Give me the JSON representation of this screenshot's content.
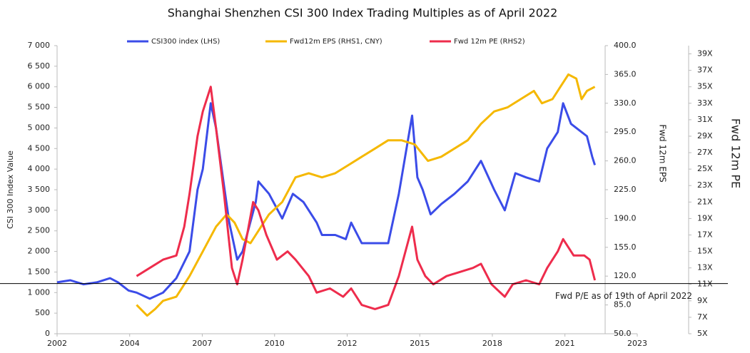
{
  "chart_data": {
    "type": "line",
    "title": "Shanghai Shenzhen CSI 300 Index Trading Multiples as of April 2022",
    "y_label": "CSI 300 Index Value",
    "y2_label": "Fwd 12m EPS",
    "y3_label": "Fwd 12m PE",
    "xlim": [
      2002,
      2023.9
    ],
    "xticks": [
      {
        "value": 2002.0,
        "label": "2002"
      },
      {
        "value": 2004.74,
        "label": "2004"
      },
      {
        "value": 2007.48,
        "label": "2007"
      },
      {
        "value": 2010.21,
        "label": "2010"
      },
      {
        "value": 2012.95,
        "label": "2012"
      },
      {
        "value": 2015.69,
        "label": "2015"
      },
      {
        "value": 2018.43,
        "label": "2018"
      },
      {
        "value": 2021.17,
        "label": "2021"
      },
      {
        "value": 2023.9,
        "label": "2023"
      }
    ],
    "ylim": [
      0,
      7000
    ],
    "yticks": [
      0,
      500,
      {
        "value": 1000,
        "label": "1 000"
      },
      {
        "value": 1500,
        "label": "1 500"
      },
      {
        "value": 2000,
        "label": "2 000"
      },
      {
        "value": 2500,
        "label": "2 500"
      },
      {
        "value": 3000,
        "label": "3 000"
      },
      {
        "value": 3500,
        "label": "3 500"
      },
      {
        "value": 4000,
        "label": "4 000"
      },
      {
        "value": 4500,
        "label": "4 500"
      },
      {
        "value": 5000,
        "label": "5 000"
      },
      {
        "value": 5500,
        "label": "5 500"
      },
      {
        "value": 6000,
        "label": "6 000"
      },
      {
        "value": 6500,
        "label": "6 500"
      },
      {
        "value": 7000,
        "label": "7 000"
      }
    ],
    "y2lim": [
      50,
      400
    ],
    "y2ticks": [
      {
        "value": 50,
        "label": "50.0"
      },
      {
        "value": 85,
        "label": "85.0"
      },
      {
        "value": 120,
        "label": "120.0"
      },
      {
        "value": 155,
        "label": "155.0"
      },
      {
        "value": 190,
        "label": "190.0"
      },
      {
        "value": 225,
        "label": "225.0"
      },
      {
        "value": 260,
        "label": "260.0"
      },
      {
        "value": 295,
        "label": "295.0"
      },
      {
        "value": 330,
        "label": "330.0"
      },
      {
        "value": 365,
        "label": "365.0"
      },
      {
        "value": 400,
        "label": "400.0"
      }
    ],
    "y3lim": [
      5,
      40
    ],
    "y3ticks": [
      {
        "value": 5,
        "label": "5X"
      },
      {
        "value": 7,
        "label": "7X"
      },
      {
        "value": 9,
        "label": "9X"
      },
      {
        "value": 11,
        "label": "11X"
      },
      {
        "value": 13,
        "label": "13X"
      },
      {
        "value": 15,
        "label": "15X"
      },
      {
        "value": 17,
        "label": "17X"
      },
      {
        "value": 19,
        "label": "19X"
      },
      {
        "value": 21,
        "label": "21X"
      },
      {
        "value": 23,
        "label": "23X"
      },
      {
        "value": 25,
        "label": "25X"
      },
      {
        "value": 27,
        "label": "27X"
      },
      {
        "value": 29,
        "label": "29X"
      },
      {
        "value": 31,
        "label": "31X"
      },
      {
        "value": 33,
        "label": "33X"
      },
      {
        "value": 35,
        "label": "35X"
      },
      {
        "value": 37,
        "label": "37X"
      },
      {
        "value": 39,
        "label": "39X"
      }
    ],
    "series": [
      {
        "name": "CSI300 index (LHS)",
        "color": "#3b4ce8",
        "axis": "y",
        "x": [
          2002.0,
          2002.5,
          2003.0,
          2003.5,
          2004.0,
          2004.3,
          2004.7,
          2005.0,
          2005.5,
          2006.0,
          2006.5,
          2007.0,
          2007.3,
          2007.5,
          2007.8,
          2008.0,
          2008.3,
          2008.5,
          2008.8,
          2009.0,
          2009.5,
          2009.6,
          2010.0,
          2010.5,
          2010.9,
          2011.3,
          2011.8,
          2012.0,
          2012.5,
          2012.9,
          2013.1,
          2013.5,
          2014.0,
          2014.5,
          2014.9,
          2015.4,
          2015.6,
          2015.8,
          2016.1,
          2016.5,
          2017.0,
          2017.5,
          2018.0,
          2018.5,
          2018.9,
          2019.3,
          2019.7,
          2020.2,
          2020.5,
          2020.9,
          2021.1,
          2021.4,
          2021.8,
          2022.0,
          2022.2,
          2022.3
        ],
        "values": [
          1250,
          1300,
          1200,
          1250,
          1350,
          1250,
          1050,
          1000,
          850,
          1000,
          1350,
          2000,
          3500,
          4000,
          5600,
          5000,
          3600,
          2700,
          1800,
          2000,
          3200,
          3700,
          3400,
          2800,
          3400,
          3200,
          2700,
          2400,
          2400,
          2300,
          2700,
          2200,
          2200,
          2200,
          3400,
          5300,
          3800,
          3500,
          2900,
          3150,
          3400,
          3700,
          4200,
          3500,
          3000,
          3900,
          3800,
          3700,
          4500,
          4900,
          5600,
          5100,
          4900,
          4800,
          4300,
          4100
        ]
      },
      {
        "name": "Fwd12m EPS (RHS1, CNY)",
        "color": "#f5b800",
        "axis": "y2",
        "x": [
          2005.0,
          2005.4,
          2005.7,
          2006.0,
          2006.5,
          2007.0,
          2007.5,
          2008.0,
          2008.4,
          2008.7,
          2009.0,
          2009.3,
          2009.7,
          2010.0,
          2010.5,
          2011.0,
          2011.5,
          2012.0,
          2012.5,
          2013.0,
          2013.5,
          2014.0,
          2014.5,
          2015.0,
          2015.5,
          2016.0,
          2016.5,
          2017.0,
          2017.5,
          2018.0,
          2018.5,
          2019.0,
          2019.5,
          2020.0,
          2020.3,
          2020.7,
          2021.0,
          2021.3,
          2021.6,
          2021.8,
          2022.0,
          2022.3
        ],
        "values": [
          85,
          72,
          80,
          90,
          95,
          120,
          150,
          180,
          195,
          185,
          165,
          160,
          180,
          195,
          210,
          240,
          245,
          240,
          245,
          255,
          265,
          275,
          285,
          285,
          280,
          260,
          265,
          275,
          285,
          305,
          320,
          325,
          335,
          345,
          330,
          335,
          350,
          365,
          360,
          335,
          345,
          350
        ]
      },
      {
        "name": "Fwd 12m PE (RHS2)",
        "color": "#ee2c4c",
        "axis": "y3",
        "x": [
          2005.0,
          2005.5,
          2006.0,
          2006.5,
          2006.8,
          2007.0,
          2007.3,
          2007.5,
          2007.8,
          2008.0,
          2008.3,
          2008.6,
          2008.8,
          2009.0,
          2009.4,
          2009.6,
          2009.9,
          2010.3,
          2010.7,
          2011.0,
          2011.5,
          2011.8,
          2012.3,
          2012.8,
          2013.1,
          2013.5,
          2014.0,
          2014.5,
          2014.9,
          2015.4,
          2015.6,
          2015.9,
          2016.2,
          2016.7,
          2017.2,
          2017.7,
          2018.0,
          2018.4,
          2018.9,
          2019.2,
          2019.7,
          2020.2,
          2020.5,
          2020.9,
          2021.1,
          2021.5,
          2021.9,
          2022.1,
          2022.3
        ],
        "values": [
          12,
          13,
          14,
          14.5,
          18,
          22,
          29,
          32,
          35,
          30,
          22,
          13,
          11,
          14,
          21,
          20,
          17,
          14,
          15,
          14,
          12,
          10,
          10.5,
          9.5,
          10.5,
          8.5,
          8,
          8.5,
          12,
          18,
          14,
          12,
          11,
          12,
          12.5,
          13,
          13.5,
          11,
          9.5,
          11,
          11.5,
          11,
          13,
          15,
          16.5,
          14.5,
          14.5,
          14,
          11.5
        ]
      }
    ],
    "annotation": {
      "text": "Fwd P/E as of 19th of April 2022",
      "value": 11.1,
      "axis": "y3"
    }
  }
}
